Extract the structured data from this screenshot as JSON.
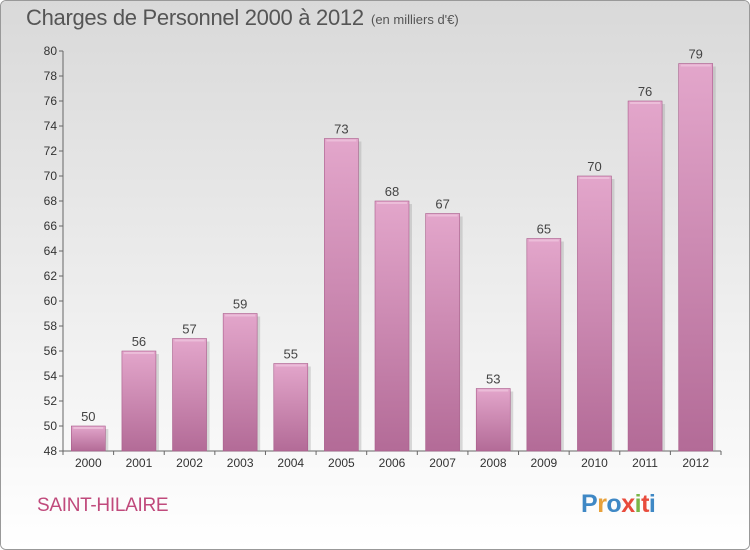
{
  "header": {
    "title": "Charges de Personnel 2000 à 2012",
    "unit": "(en milliers d'€)"
  },
  "footer": {
    "city": "SAINT-HILAIRE",
    "logo": [
      "P",
      "r",
      "o",
      "x",
      "i",
      "t",
      "i"
    ],
    "logo_colors": [
      "#3f88c5",
      "#e8a13a",
      "#3f88c5",
      "#e84b3c",
      "#7ab648",
      "#e84b3c",
      "#3f88c5"
    ]
  },
  "colors": {
    "background_top": "#d9d9d9",
    "background_bottom": "#ffffff",
    "bar_light": "#e3a6cb",
    "bar_dark": "#b36b97"
  },
  "chart_data": {
    "type": "bar",
    "title": "Charges de Personnel 2000 à 2012",
    "subtitle": "(en milliers d'€)",
    "categories": [
      "2000",
      "2001",
      "2002",
      "2003",
      "2004",
      "2005",
      "2006",
      "2007",
      "2008",
      "2009",
      "2010",
      "2011",
      "2012"
    ],
    "values": [
      50,
      56,
      57,
      59,
      55,
      73,
      68,
      67,
      53,
      65,
      70,
      76,
      79
    ],
    "ylim": [
      48,
      80
    ],
    "yticks": [
      48,
      50,
      52,
      54,
      56,
      58,
      60,
      62,
      64,
      66,
      68,
      70,
      72,
      74,
      76,
      78,
      80
    ],
    "grid": false,
    "data_labels": true
  }
}
